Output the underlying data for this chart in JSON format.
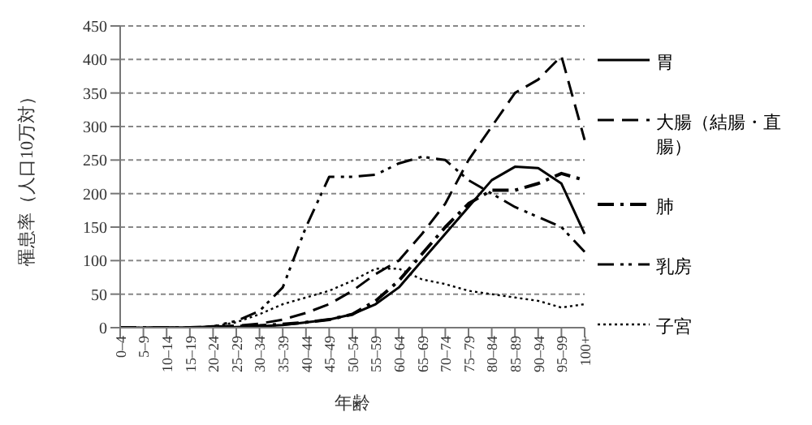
{
  "chart_data": {
    "type": "line",
    "xlabel": "年齢",
    "ylabel": "罹患率（人口10万対）",
    "categories": [
      "0–4",
      "5–9",
      "10–14",
      "15–19",
      "20–24",
      "25–29",
      "30–34",
      "35–39",
      "40–44",
      "45–49",
      "50–54",
      "55–59",
      "60–64",
      "65–69",
      "70–74",
      "75–79",
      "80–84",
      "85–89",
      "90–94",
      "95–99",
      "100+"
    ],
    "series": [
      {
        "name": "胃",
        "color": "#000000",
        "line_style": "solid",
        "values": [
          0,
          0,
          0,
          0,
          0,
          1,
          2,
          4,
          8,
          12,
          20,
          35,
          60,
          100,
          140,
          180,
          220,
          240,
          238,
          215,
          140
        ]
      },
      {
        "name": "大腸（結腸・直腸）",
        "color": "#000000",
        "line_style": "dashed",
        "values": [
          0,
          0,
          0,
          0,
          1,
          3,
          6,
          12,
          22,
          35,
          55,
          80,
          100,
          140,
          185,
          250,
          300,
          350,
          370,
          405,
          280
        ]
      },
      {
        "name": "肺",
        "color": "#000000",
        "line_style": "dashdot",
        "values": [
          0,
          0,
          0,
          0,
          1,
          2,
          3,
          5,
          8,
          12,
          20,
          40,
          70,
          110,
          150,
          185,
          205,
          205,
          215,
          230,
          220
        ]
      },
      {
        "name": "乳房",
        "color": "#000000",
        "line_style": "dashdotdot",
        "values": [
          0,
          0,
          0,
          0,
          2,
          10,
          25,
          60,
          150,
          225,
          225,
          228,
          245,
          255,
          250,
          220,
          200,
          180,
          165,
          150,
          113
        ]
      },
      {
        "name": "子宮",
        "color": "#000000",
        "line_style": "dotted",
        "values": [
          0,
          0,
          0,
          0,
          2,
          8,
          20,
          35,
          45,
          55,
          70,
          88,
          88,
          72,
          65,
          55,
          50,
          45,
          40,
          30,
          35
        ]
      }
    ],
    "ylim": [
      0,
      450
    ],
    "yticks": [
      0,
      50,
      100,
      150,
      200,
      250,
      300,
      350,
      400,
      450
    ],
    "grid": "y",
    "legend": "right",
    "marker": "none"
  }
}
